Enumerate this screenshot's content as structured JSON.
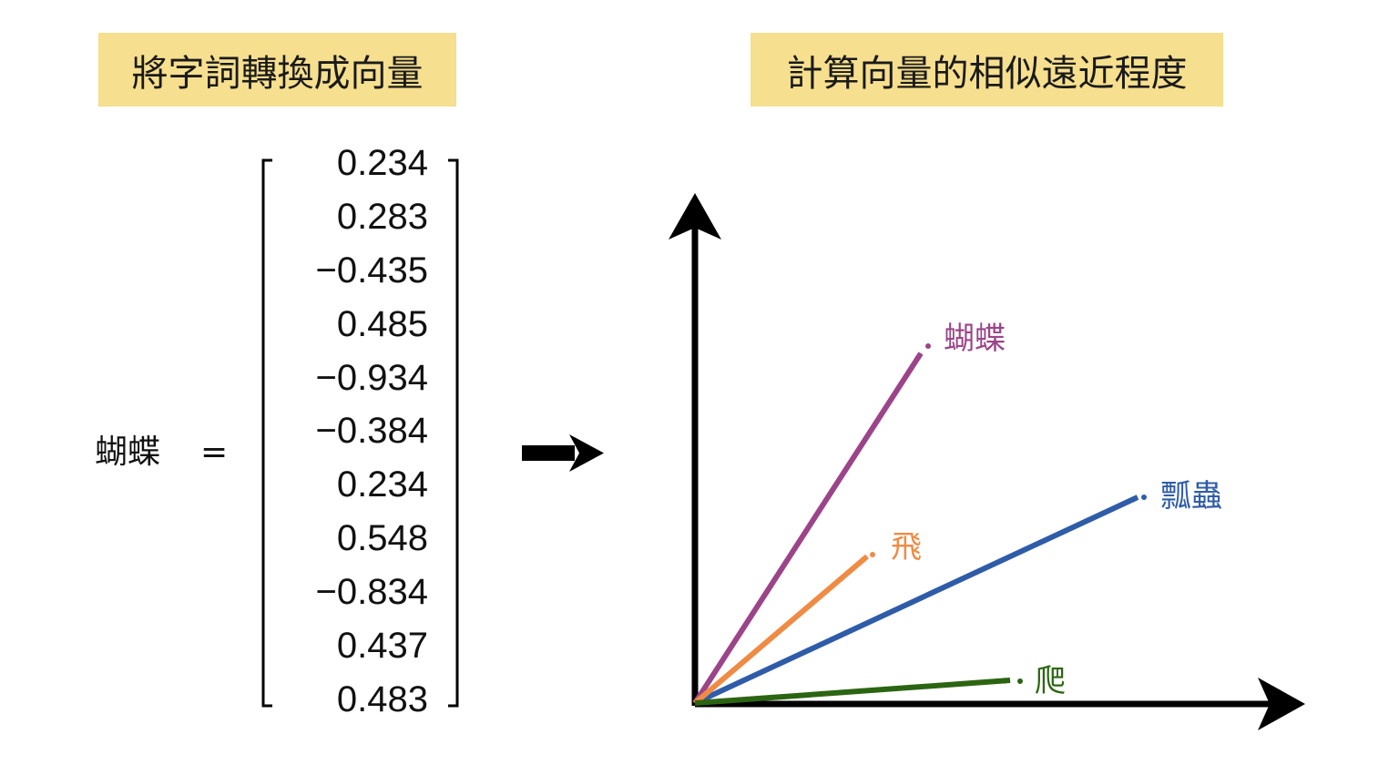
{
  "header": {
    "left_title": "將字詞轉換成向量",
    "right_title": "計算向量的相似遠近程度"
  },
  "colors": {
    "title_box": "#f6df8e",
    "butterfly": "#9c4489",
    "ladybug": "#2f5ca8",
    "fly": "#ef8b44",
    "crawl": "#2c6512",
    "axis": "#000000"
  },
  "embedding": {
    "word": "蝴蝶",
    "equals": "=",
    "values": [
      "0.234",
      "0.283",
      "−0.435",
      "0.485",
      "−0.934",
      "−0.384",
      "0.234",
      "0.548",
      "−0.834",
      "0.437",
      "0.483"
    ]
  },
  "arrow_icon": "right-arrow-icon",
  "vector_space": {
    "vectors": [
      {
        "label": "蝴蝶",
        "color": "#9c4489"
      },
      {
        "label": "瓢蟲",
        "color": "#2f5ca8"
      },
      {
        "label": "飛",
        "color": "#ef8b44"
      },
      {
        "label": "爬",
        "color": "#2c6512"
      }
    ]
  }
}
